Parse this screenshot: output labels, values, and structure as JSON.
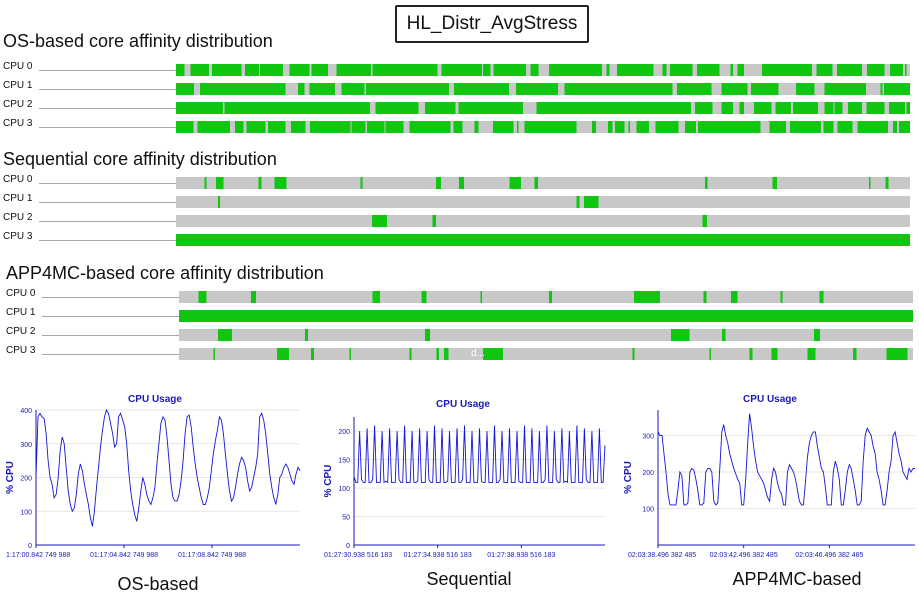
{
  "header": {
    "title": "HL_Distr_AvgStress"
  },
  "sections": [
    {
      "title": "OS-based core affinity distribution",
      "rows": [
        {
          "label": "CPU 0",
          "pattern": "dense",
          "seed": 11
        },
        {
          "label": "CPU 1",
          "pattern": "dense",
          "seed": 23
        },
        {
          "label": "CPU 2",
          "pattern": "dense",
          "seed": 37
        },
        {
          "label": "CPU 3",
          "pattern": "dense",
          "seed": 51
        }
      ]
    },
    {
      "title": "Sequential core affinity distribution",
      "rows": [
        {
          "label": "CPU 0",
          "pattern": "medium",
          "seed": 61
        },
        {
          "label": "CPU 1",
          "pattern": "sparse",
          "seed": 73
        },
        {
          "label": "CPU 2",
          "pattern": "sparse",
          "seed": 89
        },
        {
          "label": "CPU 3",
          "pattern": "full",
          "seed": 97
        }
      ]
    },
    {
      "title": "APP4MC-based core affinity distribution",
      "rows": [
        {
          "label": "CPU 0",
          "pattern": "medium",
          "seed": 103
        },
        {
          "label": "CPU 1",
          "pattern": "full",
          "seed": 109
        },
        {
          "label": "CPU 2",
          "pattern": "sparse",
          "seed": 127
        },
        {
          "label": "CPU 3",
          "pattern": "medium",
          "seed": 131,
          "annotation": "d..."
        }
      ]
    }
  ],
  "colors": {
    "busy": "#11c611",
    "idle": "#c8c8c8",
    "line": "#1515d6",
    "axis": "#1a1ab8"
  },
  "chart_data": [
    {
      "type": "line",
      "title": "CPU Usage",
      "ylabel": "% CPU",
      "ylim": [
        0,
        400
      ],
      "yticks": [
        0,
        100,
        200,
        300,
        400
      ],
      "xtick_labels": [
        "1:17:00.842 749 988",
        "01:17:04.842 749 988",
        "01:17:08.842 749 988"
      ],
      "caption": "OS-based",
      "series": [
        {
          "values": [
            200,
            380,
            390,
            380,
            375,
            330,
            250,
            200,
            180,
            140,
            150,
            200,
            280,
            320,
            300,
            230,
            160,
            120,
            100,
            110,
            150,
            210,
            240,
            220,
            180,
            150,
            120,
            80,
            55,
            100,
            170,
            230,
            290,
            340,
            380,
            400,
            390,
            360,
            330,
            290,
            300,
            380,
            390,
            370,
            350,
            300,
            220,
            160,
            120,
            90,
            70,
            110,
            160,
            200,
            180,
            150,
            130,
            120,
            140,
            170,
            240,
            300,
            360,
            380,
            370,
            320,
            250,
            180,
            140,
            130,
            130,
            150,
            190,
            250,
            330,
            380,
            385,
            350,
            290,
            240,
            200,
            170,
            140,
            120,
            120,
            140,
            170,
            220,
            270,
            310,
            340,
            380,
            370,
            330,
            270,
            210,
            160,
            130,
            140,
            170,
            210,
            240,
            260,
            250,
            230,
            190,
            160,
            170,
            200,
            230,
            270,
            380,
            390,
            370,
            330,
            270,
            210,
            170,
            140,
            120,
            150,
            200,
            210,
            230,
            240,
            230,
            210,
            190,
            180,
            210,
            230,
            220
          ]
        }
      ]
    },
    {
      "type": "line",
      "title": "CPU Usage",
      "ylabel": "% CPU",
      "ylim": [
        0,
        225
      ],
      "yticks": [
        0,
        50,
        100,
        150,
        200
      ],
      "xtick_labels": [
        "01:27:30.938 516 183",
        "01:27:34.938 516 183",
        "01:27:38.938 516 183"
      ],
      "caption": "Sequential",
      "series": [
        {
          "values": [
            120,
            110,
            110,
            200,
            115,
            110,
            110,
            205,
            110,
            110,
            115,
            210,
            110,
            110,
            110,
            200,
            110,
            112,
            110,
            205,
            110,
            110,
            110,
            200,
            115,
            110,
            110,
            210,
            110,
            110,
            110,
            200,
            110,
            110,
            112,
            205,
            110,
            110,
            110,
            200,
            115,
            110,
            110,
            210,
            110,
            110,
            110,
            205,
            110,
            110,
            112,
            200,
            110,
            110,
            110,
            205,
            110,
            110,
            115,
            210,
            110,
            110,
            110,
            200,
            110,
            110,
            110,
            205,
            112,
            110,
            110,
            200,
            110,
            110,
            110,
            210,
            110,
            110,
            115,
            200,
            110,
            110,
            110,
            205,
            110,
            110,
            110,
            200,
            112,
            110,
            110,
            210,
            110,
            110,
            110,
            205,
            110,
            110,
            110,
            200,
            110,
            110,
            115,
            210,
            110,
            110,
            110,
            200,
            115,
            110,
            110,
            205,
            110,
            112,
            110,
            200,
            110,
            110,
            110,
            210,
            110,
            110,
            110,
            205,
            115,
            110,
            110,
            200,
            110,
            110,
            110,
            205,
            110,
            110,
            175
          ]
        }
      ]
    },
    {
      "type": "line",
      "title": "CPU Usage",
      "ylabel": "% CPU",
      "ylim": [
        0,
        370
      ],
      "yticks": [
        100,
        200,
        300
      ],
      "xtick_labels": [
        "02:03:38.496 382 485",
        "02:03:42.496 382 485",
        "02:03:46.496 382 485"
      ],
      "caption": "APP4MC-based",
      "series": [
        {
          "values": [
            310,
            300,
            300,
            250,
            200,
            140,
            110,
            110,
            110,
            110,
            150,
            200,
            190,
            110,
            110,
            115,
            200,
            210,
            205,
            180,
            150,
            110,
            110,
            115,
            200,
            210,
            210,
            200,
            120,
            110,
            115,
            210,
            310,
            330,
            300,
            280,
            250,
            230,
            210,
            195,
            180,
            170,
            110,
            110,
            180,
            280,
            360,
            320,
            270,
            230,
            200,
            190,
            180,
            170,
            150,
            130,
            120,
            180,
            210,
            200,
            170,
            150,
            140,
            110,
            110,
            200,
            220,
            210,
            200,
            180,
            150,
            120,
            110,
            110,
            170,
            240,
            280,
            300,
            310,
            310,
            270,
            240,
            210,
            200,
            160,
            110,
            110,
            110,
            200,
            230,
            210,
            180,
            110,
            110,
            150,
            200,
            220,
            210,
            180,
            150,
            110,
            110,
            120,
            230,
            300,
            320,
            310,
            300,
            270,
            250,
            200,
            180,
            150,
            110,
            110,
            150,
            200,
            230,
            300,
            310,
            280,
            250,
            230,
            200,
            190,
            180,
            210,
            200,
            210,
            210
          ]
        }
      ]
    }
  ]
}
